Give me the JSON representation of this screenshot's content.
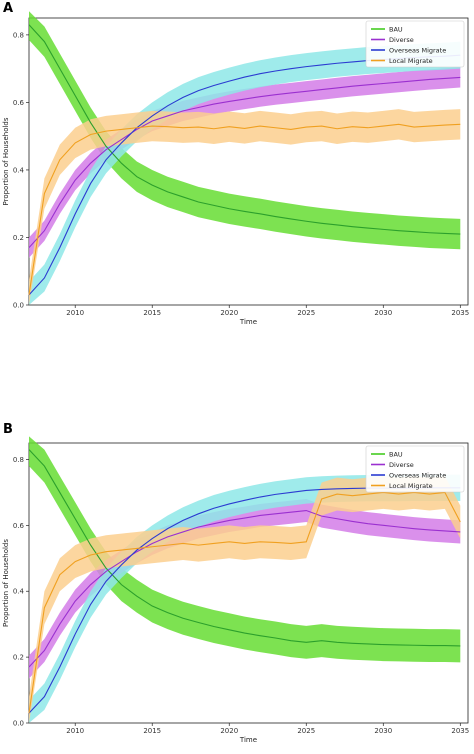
{
  "chart_data": [
    {
      "panel": "A",
      "type": "line",
      "xlabel": "Time",
      "ylabel": "Proportion of Households",
      "xlim": [
        2007,
        2035.5
      ],
      "ylim": [
        0.0,
        0.85
      ],
      "xticks": [
        2010,
        2015,
        2020,
        2025,
        2030,
        2035
      ],
      "yticks": [
        0.0,
        0.2,
        0.4,
        0.6,
        0.8
      ],
      "legend_position": "top-right",
      "x": [
        2007,
        2008,
        2009,
        2010,
        2011,
        2012,
        2013,
        2014,
        2015,
        2016,
        2017,
        2018,
        2019,
        2020,
        2021,
        2022,
        2023,
        2024,
        2025,
        2026,
        2027,
        2028,
        2029,
        2030,
        2031,
        2032,
        2033,
        2034,
        2035
      ],
      "series": [
        {
          "name": "BAU",
          "color": "#2ca02c",
          "band_color": "#66dd33",
          "values": [
            0.83,
            0.78,
            0.7,
            0.62,
            0.54,
            0.47,
            0.42,
            0.38,
            0.355,
            0.335,
            0.32,
            0.305,
            0.295,
            0.285,
            0.277,
            0.27,
            0.262,
            0.255,
            0.248,
            0.242,
            0.237,
            0.232,
            0.228,
            0.224,
            0.22,
            0.217,
            0.214,
            0.212,
            0.21
          ],
          "band": 0.045
        },
        {
          "name": "Diverse",
          "color": "#9b30d0",
          "band_color": "#d47de8",
          "values": [
            0.17,
            0.22,
            0.3,
            0.37,
            0.42,
            0.46,
            0.49,
            0.52,
            0.545,
            0.56,
            0.575,
            0.585,
            0.595,
            0.603,
            0.61,
            0.617,
            0.623,
            0.628,
            0.633,
            0.638,
            0.643,
            0.648,
            0.652,
            0.656,
            0.66,
            0.664,
            0.668,
            0.671,
            0.674
          ],
          "band": 0.03
        },
        {
          "name": "Overseas Migrate",
          "color": "#2b3bd1",
          "band_color": "#8ee8e8",
          "values": [
            0.03,
            0.08,
            0.17,
            0.27,
            0.36,
            0.43,
            0.48,
            0.525,
            0.56,
            0.59,
            0.615,
            0.635,
            0.65,
            0.663,
            0.675,
            0.685,
            0.693,
            0.7,
            0.706,
            0.711,
            0.716,
            0.72,
            0.724,
            0.727,
            0.73,
            0.733,
            0.735,
            0.737,
            0.74
          ],
          "band": 0.04
        },
        {
          "name": "Local Migrate",
          "color": "#f0a020",
          "band_color": "#fbcf8e",
          "values": [
            0.03,
            0.33,
            0.43,
            0.48,
            0.505,
            0.515,
            0.52,
            0.525,
            0.53,
            0.528,
            0.525,
            0.527,
            0.522,
            0.528,
            0.523,
            0.53,
            0.525,
            0.52,
            0.527,
            0.53,
            0.522,
            0.528,
            0.525,
            0.53,
            0.535,
            0.527,
            0.53,
            0.533,
            0.535
          ],
          "band": 0.045
        }
      ]
    },
    {
      "panel": "B",
      "type": "line",
      "xlabel": "Time",
      "ylabel": "Proportion of Households",
      "xlim": [
        2007,
        2035.5
      ],
      "ylim": [
        0.0,
        0.85
      ],
      "xticks": [
        2010,
        2015,
        2020,
        2025,
        2030,
        2035
      ],
      "yticks": [
        0.0,
        0.2,
        0.4,
        0.6,
        0.8
      ],
      "legend_position": "top-right",
      "x": [
        2007,
        2008,
        2009,
        2010,
        2011,
        2012,
        2013,
        2014,
        2015,
        2016,
        2017,
        2018,
        2019,
        2020,
        2021,
        2022,
        2023,
        2024,
        2025,
        2026,
        2027,
        2028,
        2029,
        2030,
        2031,
        2032,
        2033,
        2034,
        2035
      ],
      "series": [
        {
          "name": "BAU",
          "color": "#2ca02c",
          "band_color": "#66dd33",
          "values": [
            0.83,
            0.78,
            0.7,
            0.62,
            0.54,
            0.47,
            0.42,
            0.385,
            0.355,
            0.335,
            0.318,
            0.305,
            0.293,
            0.283,
            0.273,
            0.265,
            0.258,
            0.25,
            0.245,
            0.25,
            0.245,
            0.242,
            0.24,
            0.238,
            0.237,
            0.236,
            0.235,
            0.235,
            0.234
          ],
          "band": 0.05
        },
        {
          "name": "Diverse",
          "color": "#9b30d0",
          "band_color": "#d47de8",
          "values": [
            0.17,
            0.22,
            0.3,
            0.37,
            0.42,
            0.46,
            0.49,
            0.52,
            0.545,
            0.565,
            0.58,
            0.595,
            0.605,
            0.615,
            0.622,
            0.63,
            0.635,
            0.64,
            0.645,
            0.628,
            0.62,
            0.612,
            0.605,
            0.6,
            0.595,
            0.59,
            0.586,
            0.583,
            0.58
          ],
          "band": 0.035
        },
        {
          "name": "Overseas Migrate",
          "color": "#2b3bd1",
          "band_color": "#8ee8e8",
          "values": [
            0.03,
            0.08,
            0.17,
            0.27,
            0.36,
            0.43,
            0.48,
            0.525,
            0.56,
            0.59,
            0.615,
            0.635,
            0.652,
            0.665,
            0.676,
            0.686,
            0.694,
            0.7,
            0.706,
            0.709,
            0.711,
            0.712,
            0.713,
            0.713,
            0.713,
            0.714,
            0.714,
            0.714,
            0.714
          ],
          "band": 0.04
        },
        {
          "name": "Local Migrate",
          "color": "#f0a020",
          "band_color": "#fbcf8e",
          "values": [
            0.03,
            0.35,
            0.45,
            0.49,
            0.51,
            0.52,
            0.525,
            0.53,
            0.535,
            0.54,
            0.545,
            0.54,
            0.545,
            0.55,
            0.545,
            0.55,
            0.548,
            0.545,
            0.55,
            0.68,
            0.695,
            0.69,
            0.695,
            0.7,
            0.695,
            0.7,
            0.695,
            0.7,
            0.61
          ],
          "band": 0.05
        }
      ]
    }
  ]
}
